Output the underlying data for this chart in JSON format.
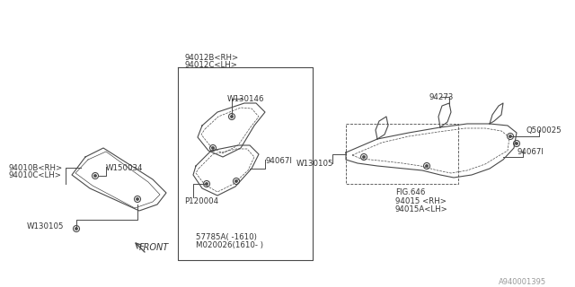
{
  "bg_color": "#ffffff",
  "line_color": "#4a4a4a",
  "text_color": "#333333",
  "fig_id": "A940001395",
  "labels": {
    "part1a": "94010B<RH>",
    "part1b": "94010C<LH>",
    "w150034": "W150034",
    "w130105_left": "W130105",
    "w130146": "W130146",
    "part2a": "94012B<RH>",
    "part2b": "94012C<LH>",
    "p120004": "P120004",
    "part3_mid": "94067I",
    "part4a": "57785A( -1610)",
    "part4b": "M020026(1610- )",
    "w130105_mid": "W130105",
    "fig646": "FIG.646",
    "part5a": "94015 <RH>",
    "part5b": "94015A<LH>",
    "part6": "94273",
    "q500025": "Q500025",
    "part7": "94067I",
    "front": "FRONT"
  }
}
